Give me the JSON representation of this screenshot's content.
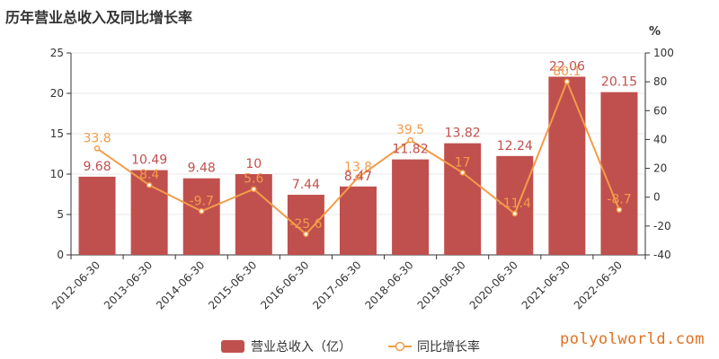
{
  "title": "历年营业总收入及同比增长率",
  "watermark": "polyolworld.com",
  "colors": {
    "bar": "#c0504d",
    "line": "#f39c4a",
    "axis": "#333333",
    "grid": "#e8e8e8"
  },
  "chart_data": {
    "type": "bar",
    "categories": [
      "2012-06-30",
      "2013-06-30",
      "2014-06-30",
      "2015-06-30",
      "2016-06-30",
      "2017-06-30",
      "2018-06-30",
      "2019-06-30",
      "2020-06-30",
      "2021-06-30",
      "2022-06-30"
    ],
    "series": [
      {
        "name": "营业总收入（亿）",
        "type": "bar",
        "axis": "left",
        "values": [
          9.68,
          10.49,
          9.48,
          10,
          7.44,
          8.47,
          11.82,
          13.82,
          12.24,
          22.06,
          20.15
        ],
        "labels": [
          "9.68",
          "10.49",
          "9.48",
          "10",
          "7.44",
          "8.47",
          "11.82",
          "13.82",
          "12.24",
          "22.06",
          "20.15"
        ]
      },
      {
        "name": "同比增长率",
        "type": "line",
        "axis": "right",
        "values": [
          33.8,
          8.4,
          -9.7,
          5.6,
          -25.6,
          13.8,
          39.5,
          17,
          -11.4,
          80.1,
          -8.7
        ],
        "labels": [
          "33.8",
          "8.4",
          "-9.7",
          "5.6",
          "-25.6",
          "13.8",
          "39.5",
          "17",
          "-11.4",
          "80.1",
          "-8.7"
        ]
      }
    ],
    "left_axis": {
      "min": 0,
      "max": 25,
      "ticks": [
        "0",
        "5",
        "10",
        "15",
        "20",
        "25"
      ]
    },
    "right_axis": {
      "unit": "%",
      "min": -40,
      "max": 100,
      "ticks": [
        "-40",
        "-20",
        "0",
        "20",
        "40",
        "60",
        "80",
        "100"
      ]
    },
    "grid": true,
    "legend_position": "bottom-center"
  }
}
